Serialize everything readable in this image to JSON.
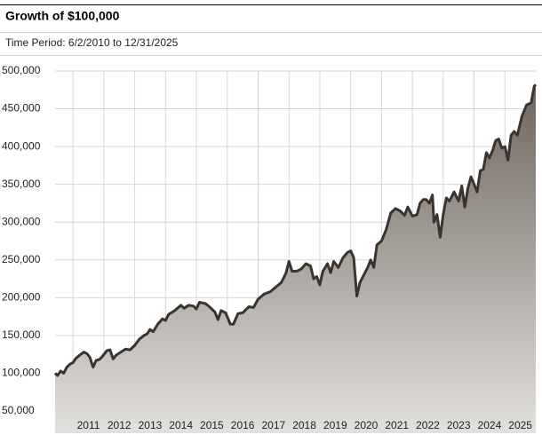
{
  "chart_data": {
    "type": "area",
    "title": "Growth of $100,000",
    "subtitle": "Time Period: 6/2/2010 to 12/31/2025",
    "color": "#3a332e",
    "fill_top": "#6e655d",
    "fill_bottom": "#e3e1de",
    "grid": true,
    "xlim": [
      2010.42,
      2026.0
    ],
    "xticks": [
      2011,
      2012,
      2013,
      2014,
      2015,
      2016,
      2017,
      2018,
      2019,
      2020,
      2021,
      2022,
      2023,
      2024,
      2025
    ],
    "ylim": [
      50000,
      500000
    ],
    "yticks": [
      {
        "value": 50000,
        "label": "50,000"
      },
      {
        "value": 100000,
        "label": "100,000"
      },
      {
        "value": 150000,
        "label": "150,000"
      },
      {
        "value": 200000,
        "label": "200,000"
      },
      {
        "value": 250000,
        "label": "250,000"
      },
      {
        "value": 300000,
        "label": "300,000"
      },
      {
        "value": 350000,
        "label": "350,000"
      },
      {
        "value": 400000,
        "label": "400,000"
      },
      {
        "value": 450000,
        "label": "450,000"
      },
      {
        "value": 500000,
        "label": "500,000"
      }
    ],
    "x": [
      2010.42,
      2010.5,
      2010.6,
      2010.7,
      2010.8,
      2010.9,
      2011.0,
      2011.1,
      2011.25,
      2011.35,
      2011.45,
      2011.55,
      2011.65,
      2011.75,
      2011.85,
      2011.95,
      2012.1,
      2012.2,
      2012.3,
      2012.4,
      2012.55,
      2012.7,
      2012.85,
      2013.0,
      2013.15,
      2013.3,
      2013.4,
      2013.5,
      2013.6,
      2013.75,
      2013.9,
      2014.0,
      2014.1,
      2014.3,
      2014.5,
      2014.6,
      2014.75,
      2014.9,
      2015.0,
      2015.1,
      2015.3,
      2015.45,
      2015.6,
      2015.7,
      2015.8,
      2015.95,
      2016.1,
      2016.2,
      2016.35,
      2016.5,
      2016.7,
      2016.85,
      2017.0,
      2017.2,
      2017.4,
      2017.6,
      2017.75,
      2017.9,
      2018.0,
      2018.1,
      2018.25,
      2018.4,
      2018.55,
      2018.7,
      2018.8,
      2018.9,
      2019.0,
      2019.1,
      2019.25,
      2019.35,
      2019.45,
      2019.6,
      2019.75,
      2019.9,
      2020.0,
      2020.1,
      2020.2,
      2020.3,
      2020.45,
      2020.55,
      2020.65,
      2020.75,
      2020.85,
      2021.0,
      2021.15,
      2021.3,
      2021.45,
      2021.6,
      2021.75,
      2021.85,
      2022.0,
      2022.15,
      2022.25,
      2022.35,
      2022.45,
      2022.55,
      2022.65,
      2022.7,
      2022.8,
      2022.9,
      2023.0,
      2023.1,
      2023.2,
      2023.35,
      2023.5,
      2023.6,
      2023.7,
      2023.8,
      2023.9,
      2024.0,
      2024.1,
      2024.2,
      2024.3,
      2024.4,
      2024.5,
      2024.6,
      2024.7,
      2024.8,
      2024.9,
      2025.0,
      2025.1,
      2025.2,
      2025.3,
      2025.4,
      2025.55,
      2025.7,
      2025.85,
      2025.95,
      2026.0
    ],
    "values": [
      100000,
      97000,
      103000,
      100000,
      108000,
      112000,
      114000,
      120000,
      125000,
      128000,
      126000,
      121000,
      108000,
      117000,
      118000,
      122000,
      130000,
      131000,
      119000,
      124000,
      128000,
      132000,
      131000,
      137000,
      145000,
      150000,
      152000,
      158000,
      155000,
      165000,
      172000,
      170000,
      178000,
      183000,
      190000,
      186000,
      190000,
      189000,
      185000,
      194000,
      192000,
      187000,
      181000,
      171000,
      183000,
      180000,
      165000,
      165000,
      179000,
      180000,
      188000,
      187000,
      198000,
      205000,
      208000,
      215000,
      220000,
      232000,
      248000,
      235000,
      235000,
      238000,
      245000,
      242000,
      225000,
      228000,
      217000,
      235000,
      245000,
      233000,
      248000,
      240000,
      253000,
      260000,
      262000,
      253000,
      202000,
      220000,
      232000,
      240000,
      250000,
      240000,
      270000,
      275000,
      290000,
      312000,
      318000,
      315000,
      309000,
      320000,
      308000,
      310000,
      325000,
      330000,
      330000,
      325000,
      336000,
      300000,
      310000,
      280000,
      310000,
      332000,
      328000,
      340000,
      328000,
      348000,
      320000,
      345000,
      360000,
      350000,
      340000,
      368000,
      370000,
      392000,
      385000,
      395000,
      408000,
      410000,
      398000,
      400000,
      382000,
      415000,
      420000,
      415000,
      440000,
      455000,
      458000,
      480000,
      482000
    ]
  }
}
